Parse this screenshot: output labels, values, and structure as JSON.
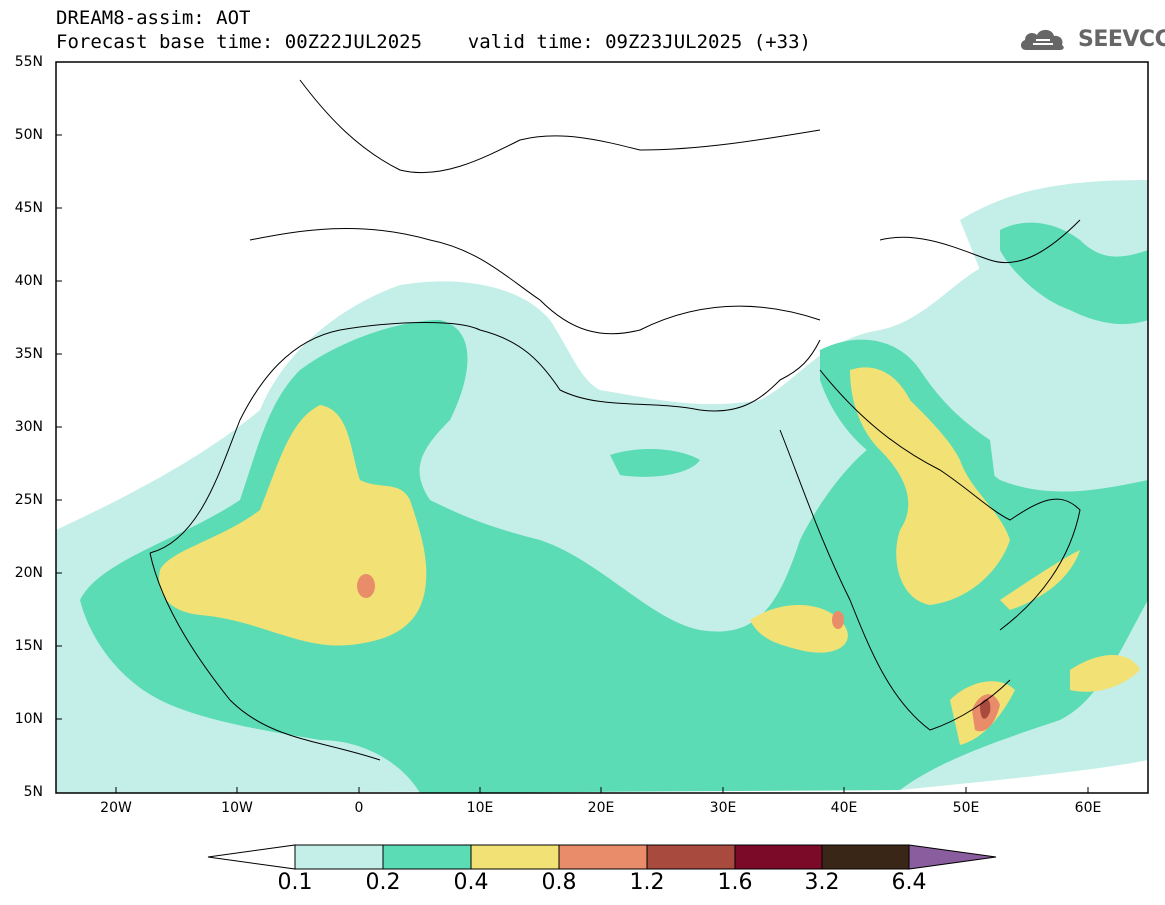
{
  "title": {
    "line1": "DREAM8-assim: AOT",
    "line2": "Forecast base time: 00Z22JUL2025    valid time: 09Z23JUL2025 (+33)"
  },
  "logo": {
    "text": "SEEVCCC",
    "icon": "cloud-icon"
  },
  "map": {
    "lat_range": [
      "5N",
      "55N"
    ],
    "lon_range": [
      "25W",
      "65E"
    ],
    "lat_labels": [
      "55N",
      "50N",
      "45N",
      "40N",
      "35N",
      "30N",
      "25N",
      "20N",
      "15N",
      "10N",
      "5N"
    ],
    "lon_labels": [
      "20W",
      "10W",
      "0",
      "10E",
      "20E",
      "30E",
      "40E",
      "50E",
      "60E"
    ],
    "field": "Aerosol Optical Thickness"
  },
  "colorbar": {
    "levels": [
      "0.1",
      "0.2",
      "0.4",
      "0.8",
      "1.2",
      "1.6",
      "3.2",
      "6.4"
    ],
    "colors": [
      "#ffffff",
      "#c4efe8",
      "#5cdcb4",
      "#f2e275",
      "#e98c69",
      "#a84a3e",
      "#7a0a28",
      "#3a2616",
      "#8a5e9e"
    ]
  }
}
